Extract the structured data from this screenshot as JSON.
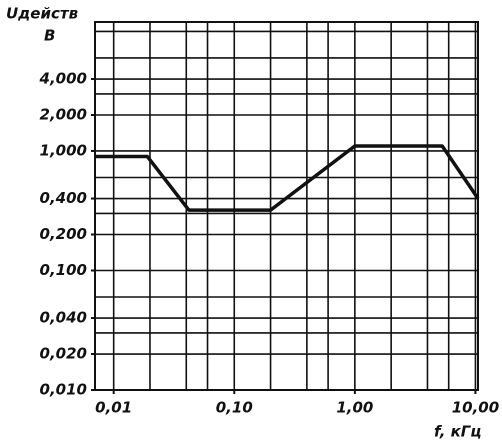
{
  "chart_data": {
    "type": "line",
    "y_label": "Uдейств",
    "y_unit": "В",
    "x_label": "f, кГц",
    "x": [
      0.007,
      0.019,
      0.042,
      0.2,
      1.0,
      5.3,
      10.5
    ],
    "series": [
      {
        "name": "",
        "color": "#111111",
        "values": [
          0.9,
          0.9,
          0.32,
          0.32,
          1.1,
          1.1,
          0.4
        ]
      }
    ],
    "x_log": true,
    "y_log": true,
    "xlim": [
      0.007,
      10.5
    ],
    "ylim": [
      0.01,
      12
    ],
    "xticks": [
      {
        "value": 0.01,
        "label": "0,01"
      },
      {
        "value": 0.1,
        "label": "0,10"
      },
      {
        "value": 1,
        "label": "1,00"
      },
      {
        "value": 10,
        "label": "10,00"
      }
    ],
    "yticks": [
      {
        "value": 0.01,
        "label": "0,010"
      },
      {
        "value": 0.02,
        "label": "0,020"
      },
      {
        "value": 0.04,
        "label": "0,040"
      },
      {
        "value": 0.1,
        "label": "0,100"
      },
      {
        "value": 0.2,
        "label": "0,200"
      },
      {
        "value": 0.4,
        "label": "0,400"
      },
      {
        "value": 1,
        "label": "1,000"
      },
      {
        "value": 2,
        "label": "2,000"
      },
      {
        "value": 4,
        "label": "4,000"
      }
    ],
    "xgrid": [
      0.01,
      0.02,
      0.04,
      0.06,
      0.1,
      0.2,
      0.4,
      0.6,
      1,
      2,
      4,
      6,
      10
    ],
    "ygrid": [
      0.01,
      0.02,
      0.03,
      0.04,
      0.06,
      0.1,
      0.2,
      0.3,
      0.4,
      0.6,
      1,
      2,
      3,
      4,
      6,
      10
    ],
    "grid": true
  }
}
